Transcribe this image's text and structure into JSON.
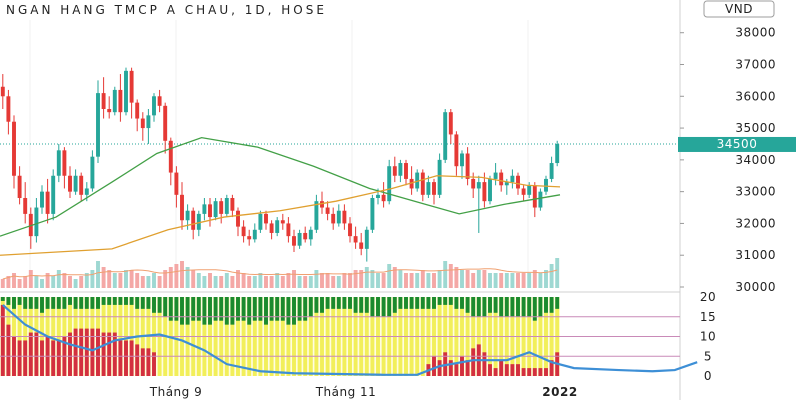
{
  "chart_data": [
    {
      "type": "candlestick",
      "title": "NGAN HANG TMCP A CHAU, 1D, HOSE",
      "currency": "VND",
      "last_price_label": "34500",
      "ylim": [
        30000,
        38400
      ],
      "yticks": [
        "38000",
        "37000",
        "36000",
        "35000",
        "34000",
        "33000",
        "32000",
        "31000",
        "30000"
      ],
      "xticks": [
        "Tháng 9",
        "Tháng 11",
        "2022"
      ],
      "colors": {
        "up": "#26a69a",
        "down": "#e53935",
        "ma_fast": "#e0a030",
        "ma_slow": "#43a047",
        "price_label": "#26a69a"
      },
      "candles": [
        [
          36300,
          36700,
          35600,
          36000
        ],
        [
          36000,
          36200,
          34800,
          35200
        ],
        [
          35200,
          35400,
          33100,
          33500
        ],
        [
          33500,
          33800,
          32600,
          32800
        ],
        [
          32800,
          33300,
          32000,
          32300
        ],
        [
          32300,
          32500,
          31200,
          31600
        ],
        [
          31600,
          32800,
          31400,
          32500
        ],
        [
          32500,
          33200,
          32300,
          33000
        ],
        [
          33000,
          33400,
          32000,
          32300
        ],
        [
          32300,
          33700,
          32100,
          33500
        ],
        [
          33500,
          34500,
          33300,
          34300
        ],
        [
          34300,
          34400,
          33100,
          33500
        ],
        [
          33500,
          33800,
          32800,
          33000
        ],
        [
          33000,
          33700,
          32900,
          33500
        ],
        [
          33500,
          33600,
          32700,
          32900
        ],
        [
          32900,
          33300,
          32700,
          33100
        ],
        [
          33100,
          34300,
          33000,
          34100
        ],
        [
          34100,
          36500,
          33900,
          36100
        ],
        [
          36100,
          36600,
          35300,
          35600
        ],
        [
          35600,
          36000,
          35300,
          35500
        ],
        [
          35500,
          36300,
          35400,
          36200
        ],
        [
          36200,
          36700,
          35200,
          35500
        ],
        [
          35500,
          36900,
          35400,
          36800
        ],
        [
          36800,
          36900,
          35300,
          35800
        ],
        [
          35800,
          35900,
          34900,
          35300
        ],
        [
          35300,
          35500,
          34600,
          35000
        ],
        [
          35000,
          35600,
          34500,
          35400
        ],
        [
          35400,
          36100,
          35200,
          36000
        ],
        [
          36000,
          36200,
          35500,
          35700
        ],
        [
          35700,
          35800,
          34200,
          34600
        ],
        [
          34600,
          34700,
          33200,
          33600
        ],
        [
          33600,
          33800,
          32500,
          32900
        ],
        [
          32900,
          33300,
          31800,
          32100
        ],
        [
          32100,
          32600,
          31800,
          32400
        ],
        [
          32400,
          32500,
          31500,
          31800
        ],
        [
          31800,
          32400,
          31600,
          32300
        ],
        [
          32300,
          32800,
          32100,
          32600
        ],
        [
          32600,
          32800,
          31900,
          32200
        ],
        [
          32200,
          32800,
          32100,
          32700
        ],
        [
          32700,
          32800,
          32000,
          32300
        ],
        [
          32300,
          32900,
          32200,
          32800
        ],
        [
          32800,
          32900,
          32200,
          32400
        ],
        [
          32400,
          32500,
          31600,
          31900
        ],
        [
          31900,
          32100,
          31400,
          31600
        ],
        [
          31600,
          31800,
          31300,
          31500
        ],
        [
          31500,
          32000,
          31400,
          31800
        ],
        [
          31800,
          32400,
          31700,
          32300
        ],
        [
          32300,
          32400,
          31800,
          32000
        ],
        [
          32000,
          32100,
          31500,
          31700
        ],
        [
          31700,
          32200,
          31600,
          32100
        ],
        [
          32100,
          32300,
          31800,
          32000
        ],
        [
          32000,
          32200,
          31400,
          31600
        ],
        [
          31600,
          31800,
          31100,
          31300
        ],
        [
          31300,
          31800,
          31200,
          31700
        ],
        [
          31700,
          31900,
          31400,
          31500
        ],
        [
          31500,
          31900,
          31300,
          31800
        ],
        [
          31800,
          32900,
          31700,
          32700
        ],
        [
          32700,
          33000,
          32300,
          32500
        ],
        [
          32500,
          32700,
          32100,
          32300
        ],
        [
          32300,
          32500,
          31800,
          32000
        ],
        [
          32000,
          32600,
          31900,
          32400
        ],
        [
          32400,
          32600,
          31800,
          32000
        ],
        [
          32000,
          32200,
          31400,
          31600
        ],
        [
          31600,
          31900,
          31200,
          31400
        ],
        [
          31400,
          31700,
          31000,
          31200
        ],
        [
          31200,
          31900,
          30800,
          31800
        ],
        [
          31800,
          32900,
          31700,
          32800
        ],
        [
          32800,
          33100,
          32600,
          32900
        ],
        [
          32900,
          33300,
          32500,
          32700
        ],
        [
          32700,
          34000,
          32600,
          33800
        ],
        [
          33800,
          34100,
          33300,
          33500
        ],
        [
          33500,
          34000,
          33300,
          33900
        ],
        [
          33900,
          34000,
          33200,
          33400
        ],
        [
          33400,
          33800,
          32900,
          33100
        ],
        [
          33100,
          33700,
          33000,
          33600
        ],
        [
          33600,
          33700,
          32700,
          32900
        ],
        [
          32900,
          33500,
          32800,
          33300
        ],
        [
          33300,
          33400,
          32600,
          32900
        ],
        [
          32900,
          34200,
          32800,
          34000
        ],
        [
          34000,
          35600,
          33900,
          35500
        ],
        [
          35500,
          35600,
          34500,
          34800
        ],
        [
          34800,
          34900,
          33500,
          33800
        ],
        [
          33800,
          34300,
          33400,
          34200
        ],
        [
          34200,
          34400,
          33200,
          33400
        ],
        [
          33400,
          33600,
          32800,
          33100
        ],
        [
          33100,
          33500,
          31700,
          33300
        ],
        [
          33300,
          33600,
          32500,
          32700
        ],
        [
          32700,
          33500,
          32600,
          33400
        ],
        [
          33400,
          33900,
          33200,
          33600
        ],
        [
          33600,
          33700,
          33000,
          33200
        ],
        [
          33200,
          33400,
          32900,
          33300
        ],
        [
          33300,
          33700,
          33100,
          33500
        ],
        [
          33500,
          33600,
          32900,
          33100
        ],
        [
          33100,
          33200,
          32700,
          32900
        ],
        [
          32900,
          33300,
          32800,
          33200
        ],
        [
          33200,
          33300,
          32200,
          32500
        ],
        [
          32500,
          33100,
          32400,
          33000
        ],
        [
          33000,
          33500,
          32900,
          33400
        ],
        [
          33400,
          34100,
          33300,
          33900
        ],
        [
          33900,
          34600,
          33800,
          34500
        ]
      ],
      "ma_fast": [
        [
          0,
          31000
        ],
        [
          20,
          31200
        ],
        [
          30,
          31800
        ],
        [
          40,
          32200
        ],
        [
          50,
          32400
        ],
        [
          60,
          32700
        ],
        [
          70,
          33100
        ],
        [
          78,
          33500
        ],
        [
          86,
          33450
        ],
        [
          94,
          33200
        ],
        [
          100,
          33150
        ]
      ],
      "ma_slow": [
        [
          0,
          31600
        ],
        [
          10,
          32200
        ],
        [
          20,
          33300
        ],
        [
          28,
          34200
        ],
        [
          36,
          34700
        ],
        [
          46,
          34400
        ],
        [
          56,
          33800
        ],
        [
          66,
          33100
        ],
        [
          76,
          32600
        ],
        [
          82,
          32300
        ],
        [
          90,
          32600
        ],
        [
          100,
          32900
        ]
      ],
      "volume": [
        3,
        4,
        5,
        3,
        4,
        6,
        4,
        3,
        5,
        4,
        6,
        5,
        4,
        3,
        4,
        5,
        6,
        9,
        7,
        6,
        5,
        5,
        6,
        6,
        5,
        4,
        4,
        5,
        4,
        6,
        7,
        8,
        9,
        7,
        6,
        5,
        4,
        5,
        4,
        4,
        5,
        4,
        6,
        5,
        4,
        4,
        5,
        4,
        4,
        5,
        4,
        5,
        6,
        4,
        4,
        4,
        6,
        5,
        5,
        4,
        4,
        5,
        5,
        6,
        6,
        7,
        6,
        5,
        5,
        8,
        7,
        6,
        5,
        5,
        5,
        6,
        5,
        5,
        6,
        9,
        8,
        7,
        6,
        6,
        5,
        6,
        6,
        5,
        5,
        5,
        5,
        5,
        5,
        5,
        5,
        6,
        5,
        6,
        8,
        10
      ],
      "indicator": {
        "ylim": [
          0,
          20
        ],
        "yticks": [
          "20",
          "15",
          "10",
          "5",
          "0"
        ],
        "levels": [
          15,
          10,
          5
        ],
        "green_above": [
          1,
          2,
          3,
          2,
          3,
          3,
          3,
          4,
          3,
          3,
          3,
          3,
          2,
          3,
          3,
          3,
          3,
          3,
          2,
          2,
          2,
          2,
          2,
          2,
          3,
          3,
          3,
          4,
          4,
          5,
          6,
          6,
          7,
          7,
          6,
          6,
          7,
          7,
          6,
          6,
          7,
          7,
          6,
          6,
          7,
          6,
          6,
          7,
          6,
          6,
          6,
          7,
          7,
          6,
          6,
          5,
          4,
          4,
          3,
          3,
          3,
          3,
          3,
          4,
          4,
          4,
          5,
          5,
          5,
          5,
          4,
          3,
          3,
          3,
          3,
          3,
          3,
          3,
          2,
          2,
          2,
          3,
          3,
          4,
          5,
          5,
          5,
          4,
          4,
          5,
          5,
          5,
          5,
          5,
          5,
          6,
          5,
          4,
          4,
          3
        ],
        "red_below": [
          18,
          13,
          10,
          9,
          9,
          11,
          11,
          9,
          10,
          9,
          9,
          10,
          11,
          12,
          12,
          12,
          12,
          12,
          11,
          11,
          11,
          9,
          9,
          9,
          8,
          7,
          7,
          6,
          0,
          0,
          0,
          0,
          0,
          0,
          0,
          0,
          0,
          0,
          0,
          0,
          0,
          0,
          0,
          0,
          0,
          0,
          0,
          0,
          0,
          0,
          0,
          0,
          0,
          0,
          0,
          0,
          0,
          0,
          0,
          0,
          0,
          0,
          0,
          0,
          0,
          0,
          0,
          0,
          0,
          0,
          0,
          0,
          0,
          0,
          0,
          0,
          3,
          5,
          4,
          6,
          4,
          3,
          5,
          4,
          7,
          8,
          6,
          3,
          2,
          4,
          3,
          3,
          3,
          2,
          2,
          2,
          2,
          2,
          4,
          6
        ],
        "blue_line": [
          [
            0,
            18
          ],
          [
            4,
            13
          ],
          [
            8,
            10
          ],
          [
            12,
            8
          ],
          [
            16,
            6.5
          ],
          [
            20,
            9
          ],
          [
            24,
            10
          ],
          [
            28,
            10.5
          ],
          [
            32,
            9
          ],
          [
            36,
            6.5
          ],
          [
            40,
            3
          ],
          [
            46,
            1.2
          ],
          [
            52,
            0.7
          ],
          [
            60,
            0.5
          ],
          [
            68,
            0.3
          ],
          [
            74,
            0.3
          ],
          [
            78,
            2.5
          ],
          [
            84,
            4
          ],
          [
            90,
            4
          ],
          [
            94,
            6
          ],
          [
            98,
            3.5
          ],
          [
            102,
            2
          ],
          [
            110,
            1.5
          ],
          [
            116,
            1.2
          ],
          [
            120,
            1.5
          ],
          [
            124,
            3.5
          ]
        ]
      }
    }
  ]
}
